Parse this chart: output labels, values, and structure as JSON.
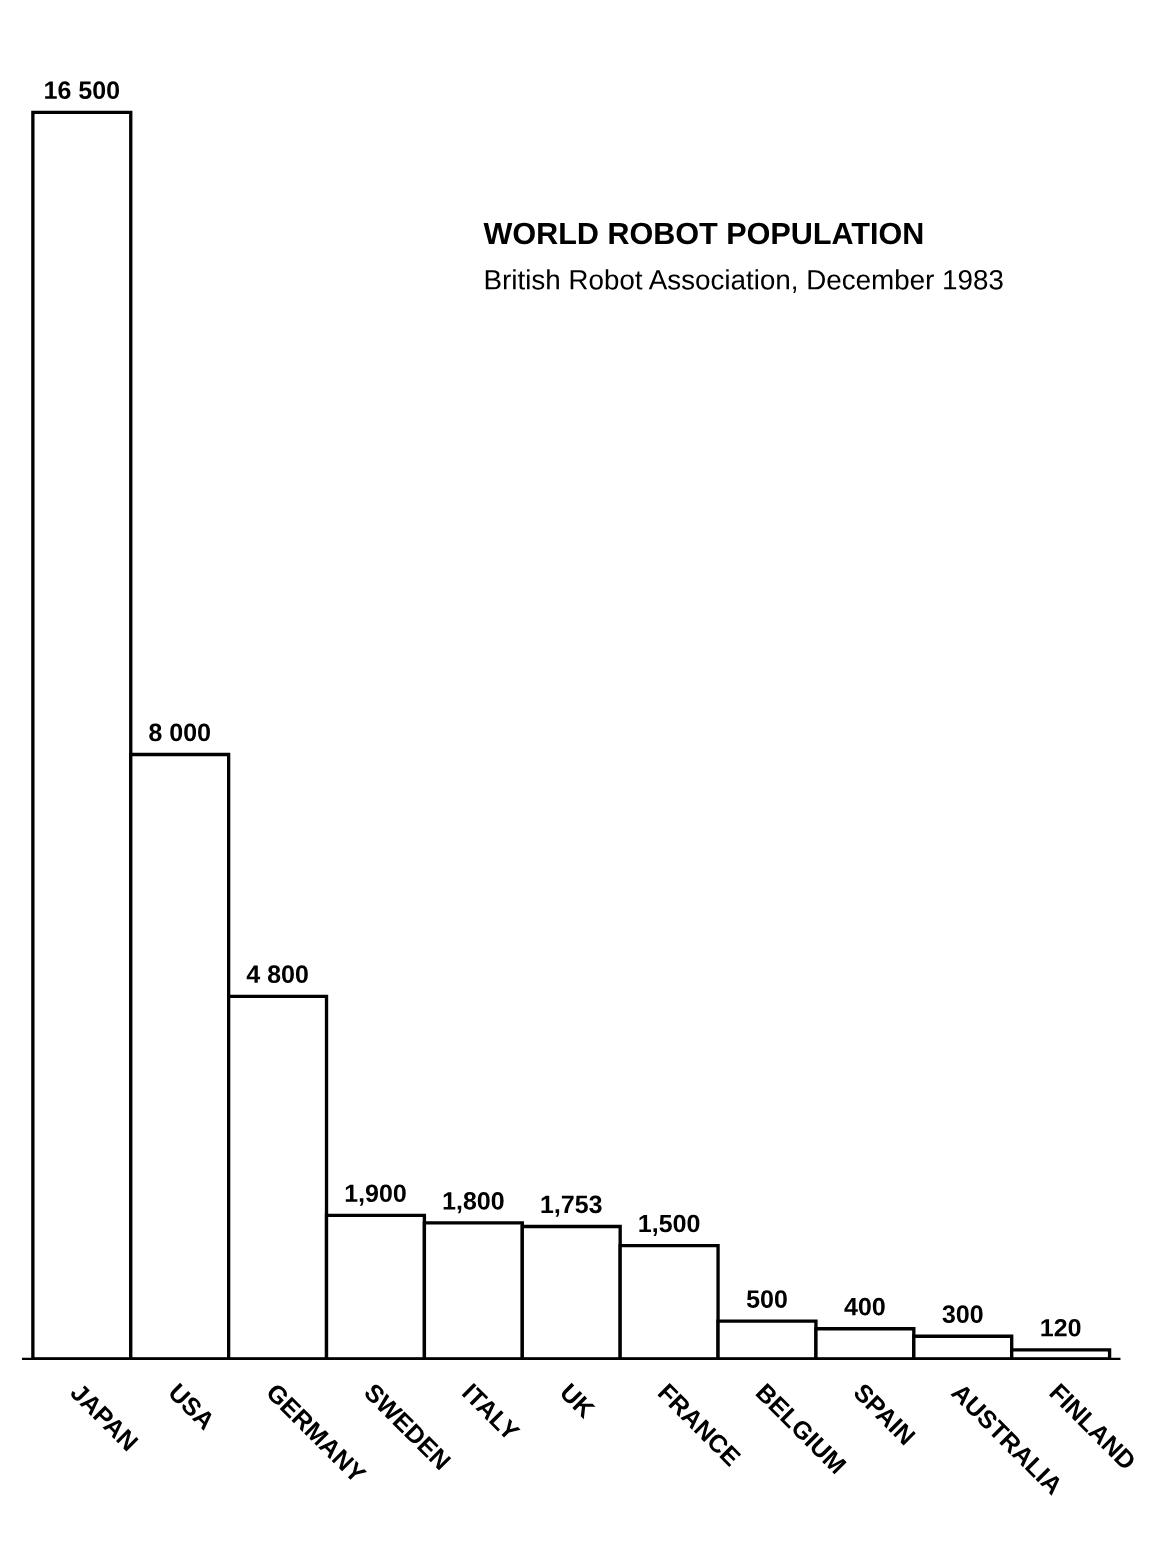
{
  "chart_data": {
    "type": "bar",
    "title": "WORLD ROBOT POPULATION",
    "subtitle": "British Robot Association, December 1983",
    "categories": [
      "JAPAN",
      "USA",
      "GERMANY",
      "SWEDEN",
      "ITALY",
      "UK",
      "FRANCE",
      "BELGIUM",
      "SPAIN",
      "AUSTRALIA",
      "FINLAND"
    ],
    "values": [
      16500,
      8000,
      4800,
      1900,
      1800,
      1753,
      1500,
      500,
      400,
      300,
      120
    ],
    "value_labels": [
      "16 500",
      "8 000",
      "4 800",
      "1,900",
      "1,800",
      "1,753",
      "1,500",
      "500",
      "400",
      "300",
      "120"
    ],
    "color": "#ffffff",
    "grid": false,
    "legend": false
  }
}
